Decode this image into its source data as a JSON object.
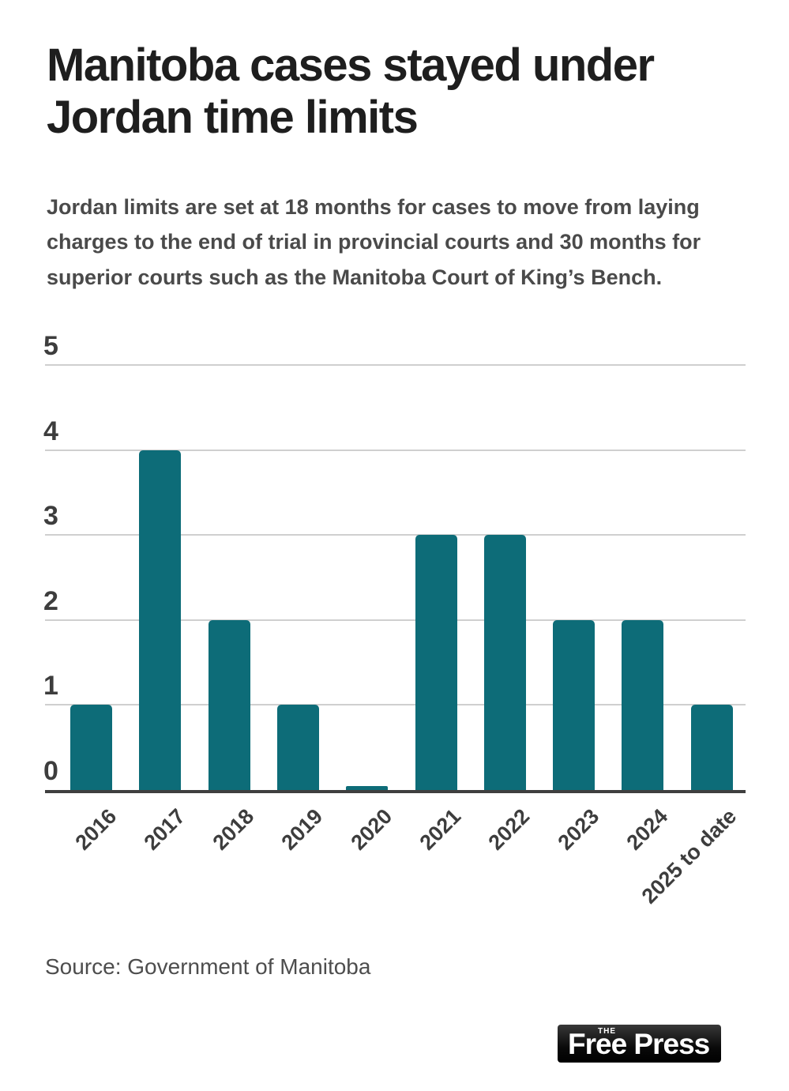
{
  "header": {
    "title": "Manitoba cases stayed under Jordan time limits",
    "title_line1": "Manitoba cases stayed under",
    "title_line2": "Jordan time limits",
    "subtitle": "Jordan limits are set at 18 months for cases to move from laying charges to the end of trial in provincial courts and 30 months for superior courts such as the Manitoba Court of King’s Bench."
  },
  "chart_data": {
    "type": "bar",
    "title": "Manitoba cases stayed under Jordan time limits",
    "categories": [
      "2016",
      "2017",
      "2018",
      "2019",
      "2020",
      "2021",
      "2022",
      "2023",
      "2024",
      "2025 to date"
    ],
    "values": [
      1,
      4,
      2,
      1,
      0,
      3,
      3,
      2,
      2,
      1
    ],
    "xlabel": "",
    "ylabel": "",
    "ylim": [
      0,
      5
    ],
    "yticks": [
      0,
      1,
      2,
      3,
      4,
      5
    ],
    "grid": true,
    "legend": false,
    "bar_color": "#0d6c78",
    "gridline_color": "#cfcfcf",
    "axis_color": "#3f3f3f",
    "tick_label_color": "#3d3d3d"
  },
  "footer": {
    "source": "Source: Government of Manitoba",
    "logo": {
      "tagline": "THE",
      "name": "Free Press"
    }
  },
  "colors": {
    "background": "#ffffff",
    "title_text": "#1e1e1e",
    "subtitle_text": "#4a4a4a",
    "source_text": "#4d4d4d",
    "logo_background": "#000000",
    "logo_text": "#ffffff"
  }
}
